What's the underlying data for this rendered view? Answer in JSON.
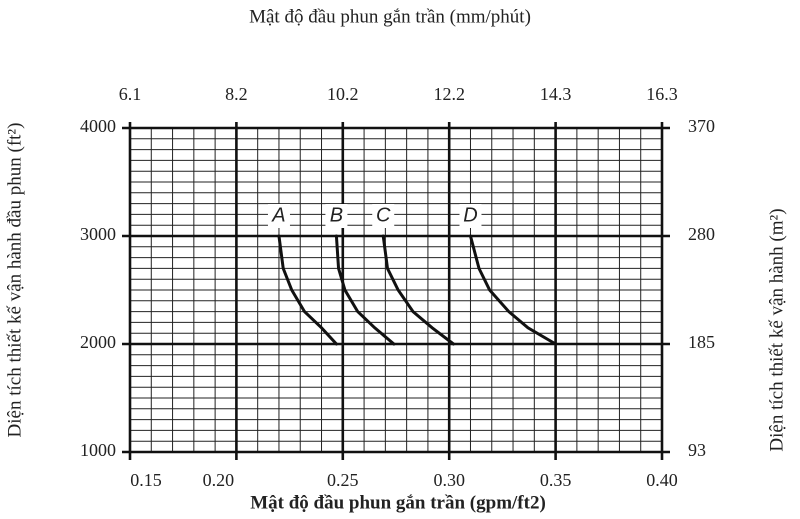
{
  "chart_data": {
    "type": "line",
    "x2label": "Mật độ đầu phun gắn trần (mm/phút)",
    "xlabel": "Mật độ đầu phun gắn trần (gpm/ft2)",
    "ylabel": "Diện tích thiết kế vận hành đầu phun (ft²)",
    "y2label": "Diện tích thiết kế vận hành (m²)",
    "xlim": [
      0.15,
      0.4
    ],
    "ylim": [
      1000,
      4000
    ],
    "xticks": [
      0.15,
      {
        "value": 0.2,
        "label": "0.20"
      },
      0.25,
      {
        "value": 0.3,
        "label": "0.30"
      },
      0.35,
      {
        "value": 0.4,
        "label": "0.40"
      }
    ],
    "x2ticks": [
      {
        "value": 0.15,
        "label": "6.1"
      },
      {
        "value": 0.2,
        "label": "8.2"
      },
      {
        "value": 0.25,
        "label": "10.2"
      },
      {
        "value": 0.3,
        "label": "12.2"
      },
      {
        "value": 0.35,
        "label": "14.3"
      },
      {
        "value": 0.4,
        "label": "16.3"
      }
    ],
    "yticks": [
      1000,
      2000,
      3000,
      4000
    ],
    "y2ticks": [
      {
        "value": 1000,
        "label": "93"
      },
      {
        "value": 2000,
        "label": "185"
      },
      {
        "value": 3000,
        "label": "280"
      },
      {
        "value": 4000,
        "label": "370"
      }
    ],
    "grid": true,
    "minor_grid": {
      "x": 0.01,
      "y": 100
    },
    "series": [
      {
        "name": "A",
        "color": "#111111",
        "x": [
          0.22,
          0.222,
          0.226,
          0.232,
          0.24,
          0.247
        ],
        "values": [
          3000,
          2700,
          2500,
          2300,
          2150,
          2000
        ]
      },
      {
        "name": "B",
        "color": "#111111",
        "x": [
          0.247,
          0.248,
          0.251,
          0.257,
          0.265,
          0.274
        ],
        "values": [
          3000,
          2700,
          2500,
          2300,
          2150,
          2000
        ]
      },
      {
        "name": "C",
        "color": "#111111",
        "x": [
          0.269,
          0.271,
          0.276,
          0.283,
          0.292,
          0.302
        ],
        "values": [
          3000,
          2700,
          2500,
          2300,
          2150,
          2000
        ]
      },
      {
        "name": "D",
        "color": "#111111",
        "x": [
          0.31,
          0.314,
          0.319,
          0.328,
          0.337,
          0.35
        ],
        "values": [
          3000,
          2700,
          2500,
          2300,
          2150,
          2000
        ]
      }
    ]
  }
}
